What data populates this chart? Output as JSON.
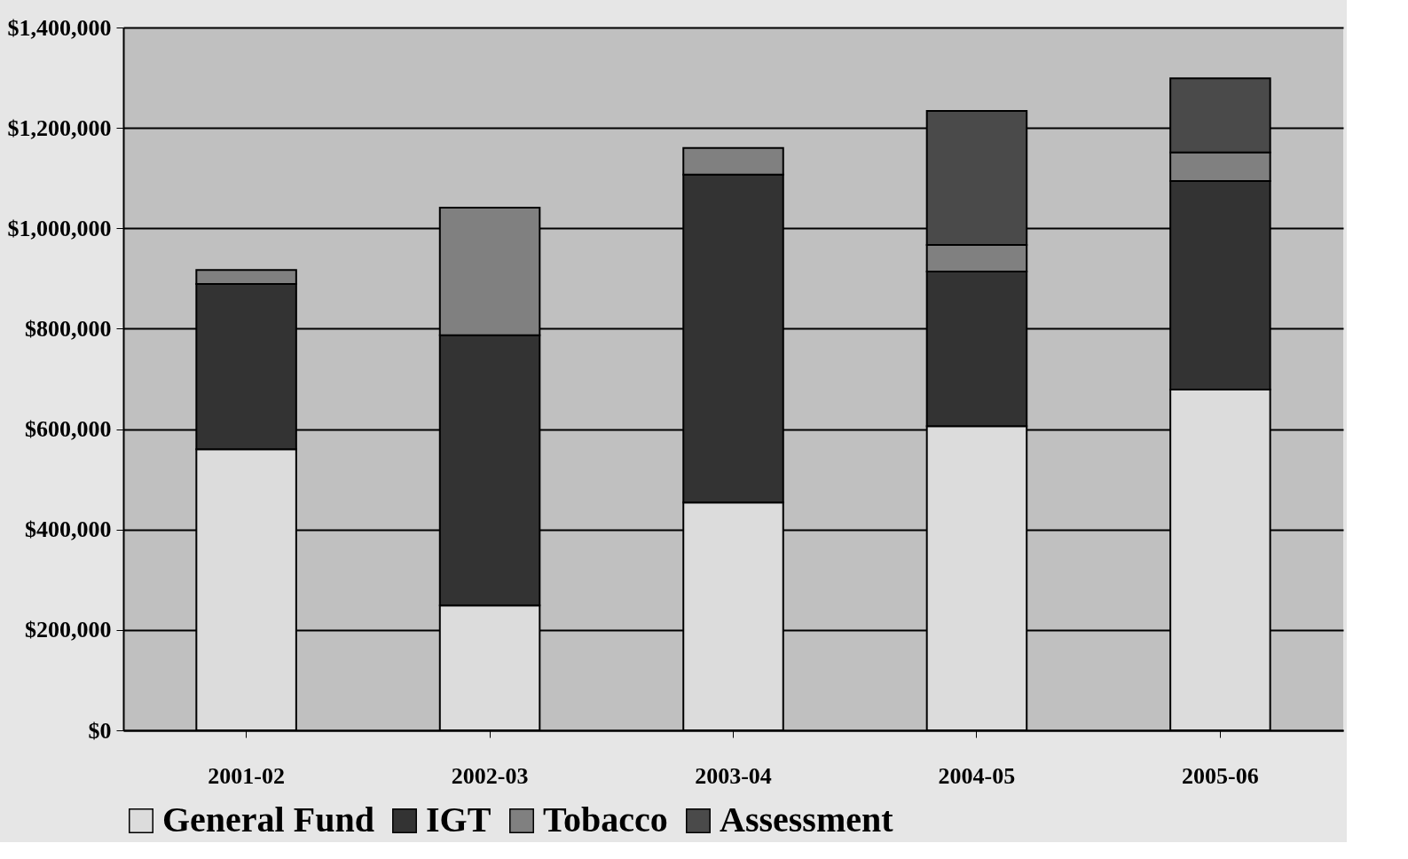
{
  "chart_data": {
    "type": "bar",
    "stacked": true,
    "categories": [
      "2001-02",
      "2002-03",
      "2003-04",
      "2004-05",
      "2005-06"
    ],
    "series": [
      {
        "name": "General Fund",
        "color": "#dcdcdc",
        "values": [
          560000,
          249000,
          454000,
          606000,
          679000
        ]
      },
      {
        "name": "IGT",
        "color": "#333333",
        "values": [
          329000,
          538000,
          653000,
          308000,
          415000
        ]
      },
      {
        "name": "Tobacco",
        "color": "#808080",
        "values": [
          28000,
          254000,
          53000,
          53000,
          57000
        ]
      },
      {
        "name": "Assessment",
        "color": "#4a4a4a",
        "values": [
          null,
          null,
          null,
          267000,
          148000
        ]
      }
    ],
    "ylim": [
      0,
      1400000
    ],
    "yticks": [
      {
        "value": 0,
        "label": "$0"
      },
      {
        "value": 200000,
        "label": "$200,000"
      },
      {
        "value": 400000,
        "label": "$400,000"
      },
      {
        "value": 600000,
        "label": "$600,000"
      },
      {
        "value": 800000,
        "label": "$800,000"
      },
      {
        "value": 1000000,
        "label": "$1,000,000"
      },
      {
        "value": 1200000,
        "label": "$1,200,000"
      },
      {
        "value": 1400000,
        "label": "$1,400,000"
      }
    ],
    "grid": "y",
    "legend": "bottom"
  }
}
